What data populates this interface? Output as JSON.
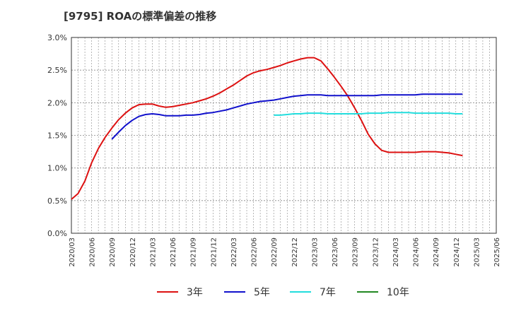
{
  "chart_data": {
    "type": "line",
    "title": "[9795]  ROAの標準偏差の推移",
    "xlabel": "",
    "ylabel": "",
    "ylim": [
      0,
      3.0
    ],
    "y_ticks": [
      "0.0%",
      "0.5%",
      "1.0%",
      "1.5%",
      "2.0%",
      "2.5%",
      "3.0%"
    ],
    "x_ticks": [
      "2020/03",
      "2020/06",
      "2020/09",
      "2020/12",
      "2021/03",
      "2021/06",
      "2021/09",
      "2021/12",
      "2022/03",
      "2022/06",
      "2022/09",
      "2022/12",
      "2023/03",
      "2023/06",
      "2023/09",
      "2023/12",
      "2024/03",
      "2024/06",
      "2024/09",
      "2024/12",
      "2025/03",
      "2025/06"
    ],
    "x_start": "2020/03",
    "grid": true,
    "legend_position": "bottom",
    "series": [
      {
        "name": "3年",
        "color": "#dd1111",
        "points": [
          [
            "2020/03",
            0.52
          ],
          [
            "2020/04",
            0.61
          ],
          [
            "2020/05",
            0.8
          ],
          [
            "2020/06",
            1.08
          ],
          [
            "2020/07",
            1.3
          ],
          [
            "2020/08",
            1.47
          ],
          [
            "2020/09",
            1.61
          ],
          [
            "2020/10",
            1.74
          ],
          [
            "2020/11",
            1.84
          ],
          [
            "2020/12",
            1.92
          ],
          [
            "2021/01",
            1.97
          ],
          [
            "2021/02",
            1.98
          ],
          [
            "2021/03",
            1.98
          ],
          [
            "2021/04",
            1.95
          ],
          [
            "2021/05",
            1.93
          ],
          [
            "2021/06",
            1.94
          ],
          [
            "2021/07",
            1.96
          ],
          [
            "2021/08",
            1.98
          ],
          [
            "2021/09",
            2.0
          ],
          [
            "2021/10",
            2.03
          ],
          [
            "2021/11",
            2.06
          ],
          [
            "2021/12",
            2.1
          ],
          [
            "2022/01",
            2.15
          ],
          [
            "2022/02",
            2.21
          ],
          [
            "2022/03",
            2.27
          ],
          [
            "2022/04",
            2.34
          ],
          [
            "2022/05",
            2.41
          ],
          [
            "2022/06",
            2.46
          ],
          [
            "2022/07",
            2.49
          ],
          [
            "2022/08",
            2.51
          ],
          [
            "2022/09",
            2.54
          ],
          [
            "2022/10",
            2.57
          ],
          [
            "2022/11",
            2.61
          ],
          [
            "2022/12",
            2.64
          ],
          [
            "2023/01",
            2.67
          ],
          [
            "2023/02",
            2.69
          ],
          [
            "2023/03",
            2.69
          ],
          [
            "2023/04",
            2.64
          ],
          [
            "2023/05",
            2.52
          ],
          [
            "2023/06",
            2.39
          ],
          [
            "2023/07",
            2.25
          ],
          [
            "2023/08",
            2.1
          ],
          [
            "2023/09",
            1.92
          ],
          [
            "2023/10",
            1.73
          ],
          [
            "2023/11",
            1.52
          ],
          [
            "2023/12",
            1.37
          ],
          [
            "2024/01",
            1.27
          ],
          [
            "2024/02",
            1.24
          ],
          [
            "2024/03",
            1.24
          ],
          [
            "2024/04",
            1.24
          ],
          [
            "2024/05",
            1.24
          ],
          [
            "2024/06",
            1.24
          ],
          [
            "2024/07",
            1.25
          ],
          [
            "2024/08",
            1.25
          ],
          [
            "2024/09",
            1.25
          ],
          [
            "2024/10",
            1.24
          ],
          [
            "2024/11",
            1.23
          ],
          [
            "2024/12",
            1.21
          ],
          [
            "2025/01",
            1.19
          ]
        ]
      },
      {
        "name": "5年",
        "color": "#1111cc",
        "points": [
          [
            "2020/09",
            1.44
          ],
          [
            "2020/10",
            1.55
          ],
          [
            "2020/11",
            1.65
          ],
          [
            "2020/12",
            1.73
          ],
          [
            "2021/01",
            1.79
          ],
          [
            "2021/02",
            1.82
          ],
          [
            "2021/03",
            1.83
          ],
          [
            "2021/04",
            1.82
          ],
          [
            "2021/05",
            1.8
          ],
          [
            "2021/06",
            1.8
          ],
          [
            "2021/07",
            1.8
          ],
          [
            "2021/08",
            1.81
          ],
          [
            "2021/09",
            1.81
          ],
          [
            "2021/10",
            1.82
          ],
          [
            "2021/11",
            1.84
          ],
          [
            "2021/12",
            1.85
          ],
          [
            "2022/01",
            1.87
          ],
          [
            "2022/02",
            1.89
          ],
          [
            "2022/03",
            1.92
          ],
          [
            "2022/04",
            1.95
          ],
          [
            "2022/05",
            1.98
          ],
          [
            "2022/06",
            2.0
          ],
          [
            "2022/07",
            2.02
          ],
          [
            "2022/08",
            2.03
          ],
          [
            "2022/09",
            2.04
          ],
          [
            "2022/10",
            2.06
          ],
          [
            "2022/11",
            2.08
          ],
          [
            "2022/12",
            2.1
          ],
          [
            "2023/01",
            2.11
          ],
          [
            "2023/02",
            2.12
          ],
          [
            "2023/03",
            2.12
          ],
          [
            "2023/04",
            2.12
          ],
          [
            "2023/05",
            2.11
          ],
          [
            "2023/06",
            2.11
          ],
          [
            "2023/07",
            2.11
          ],
          [
            "2023/08",
            2.11
          ],
          [
            "2023/09",
            2.11
          ],
          [
            "2023/10",
            2.11
          ],
          [
            "2023/11",
            2.11
          ],
          [
            "2023/12",
            2.11
          ],
          [
            "2024/01",
            2.12
          ],
          [
            "2024/02",
            2.12
          ],
          [
            "2024/03",
            2.12
          ],
          [
            "2024/04",
            2.12
          ],
          [
            "2024/05",
            2.12
          ],
          [
            "2024/06",
            2.12
          ],
          [
            "2024/07",
            2.13
          ],
          [
            "2024/08",
            2.13
          ],
          [
            "2024/09",
            2.13
          ],
          [
            "2024/10",
            2.13
          ],
          [
            "2024/11",
            2.13
          ],
          [
            "2024/12",
            2.13
          ],
          [
            "2025/01",
            2.13
          ]
        ]
      },
      {
        "name": "7年",
        "color": "#22dddd",
        "points": [
          [
            "2022/09",
            1.81
          ],
          [
            "2022/10",
            1.81
          ],
          [
            "2022/11",
            1.82
          ],
          [
            "2022/12",
            1.83
          ],
          [
            "2023/01",
            1.83
          ],
          [
            "2023/02",
            1.84
          ],
          [
            "2023/03",
            1.84
          ],
          [
            "2023/04",
            1.84
          ],
          [
            "2023/05",
            1.83
          ],
          [
            "2023/06",
            1.83
          ],
          [
            "2023/07",
            1.83
          ],
          [
            "2023/08",
            1.83
          ],
          [
            "2023/09",
            1.83
          ],
          [
            "2023/10",
            1.83
          ],
          [
            "2023/11",
            1.84
          ],
          [
            "2023/12",
            1.84
          ],
          [
            "2024/01",
            1.84
          ],
          [
            "2024/02",
            1.85
          ],
          [
            "2024/03",
            1.85
          ],
          [
            "2024/04",
            1.85
          ],
          [
            "2024/05",
            1.85
          ],
          [
            "2024/06",
            1.84
          ],
          [
            "2024/07",
            1.84
          ],
          [
            "2024/08",
            1.84
          ],
          [
            "2024/09",
            1.84
          ],
          [
            "2024/10",
            1.84
          ],
          [
            "2024/11",
            1.84
          ],
          [
            "2024/12",
            1.83
          ],
          [
            "2025/01",
            1.83
          ]
        ]
      },
      {
        "name": "10年",
        "color": "#228822",
        "points": []
      }
    ]
  }
}
